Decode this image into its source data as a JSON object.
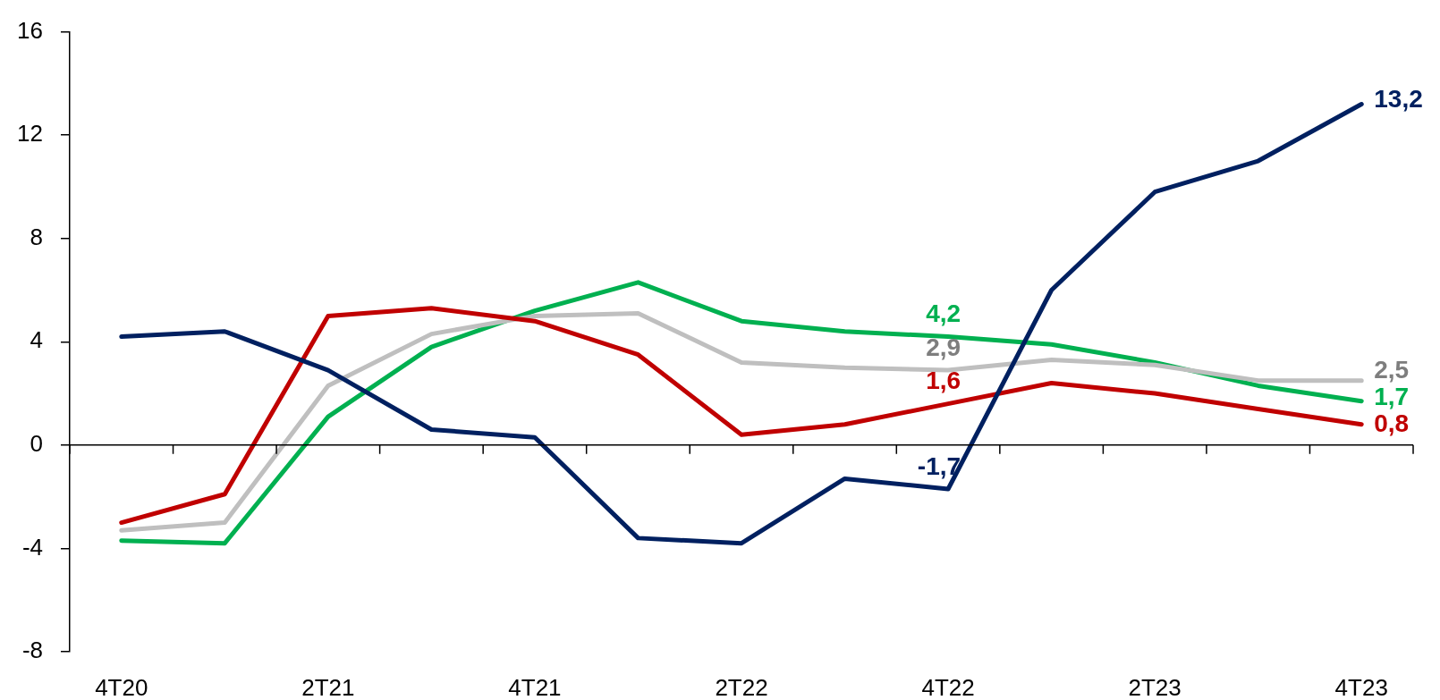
{
  "chart_data": {
    "type": "line",
    "categories": [
      "4T20",
      null,
      "2T21",
      null,
      "4T21",
      null,
      "2T22",
      null,
      "4T22",
      null,
      "2T23",
      null,
      "4T23"
    ],
    "series": [
      {
        "color": "#002060",
        "values": [
          4.2,
          4.4,
          2.9,
          0.6,
          0.3,
          -3.6,
          -3.8,
          -1.3,
          -1.7,
          6.0,
          9.8,
          11.0,
          13.2
        ],
        "value_labels": [
          null,
          null,
          null,
          null,
          null,
          null,
          null,
          null,
          "-1,7",
          null,
          null,
          null,
          "13,2"
        ]
      },
      {
        "color": "#c00000",
        "values": [
          -3.0,
          -1.9,
          5.0,
          5.3,
          4.8,
          3.5,
          0.4,
          0.8,
          1.6,
          2.4,
          2.0,
          1.4,
          0.8
        ],
        "value_labels": [
          null,
          null,
          null,
          null,
          null,
          null,
          null,
          null,
          "1,6",
          null,
          null,
          null,
          "0,8"
        ]
      },
      {
        "color": "#bfbfbf",
        "values": [
          -3.3,
          -3.0,
          2.3,
          4.3,
          5.0,
          5.1,
          3.2,
          3.0,
          2.9,
          3.3,
          3.1,
          2.5,
          2.5
        ],
        "value_labels": [
          null,
          null,
          null,
          null,
          null,
          null,
          null,
          null,
          "2,9",
          null,
          null,
          null,
          "2,5"
        ]
      },
      {
        "color": "#00b050",
        "values": [
          -3.7,
          -3.8,
          1.1,
          3.8,
          5.2,
          6.3,
          4.8,
          4.4,
          4.2,
          3.9,
          3.2,
          2.3,
          1.7
        ],
        "value_labels": [
          null,
          null,
          null,
          null,
          null,
          null,
          null,
          null,
          "4,2",
          null,
          null,
          null,
          "1,7"
        ]
      }
    ],
    "ylim": [
      -8,
      16
    ],
    "yticks": [
      -8,
      -4,
      0,
      4,
      8,
      12,
      16
    ]
  }
}
